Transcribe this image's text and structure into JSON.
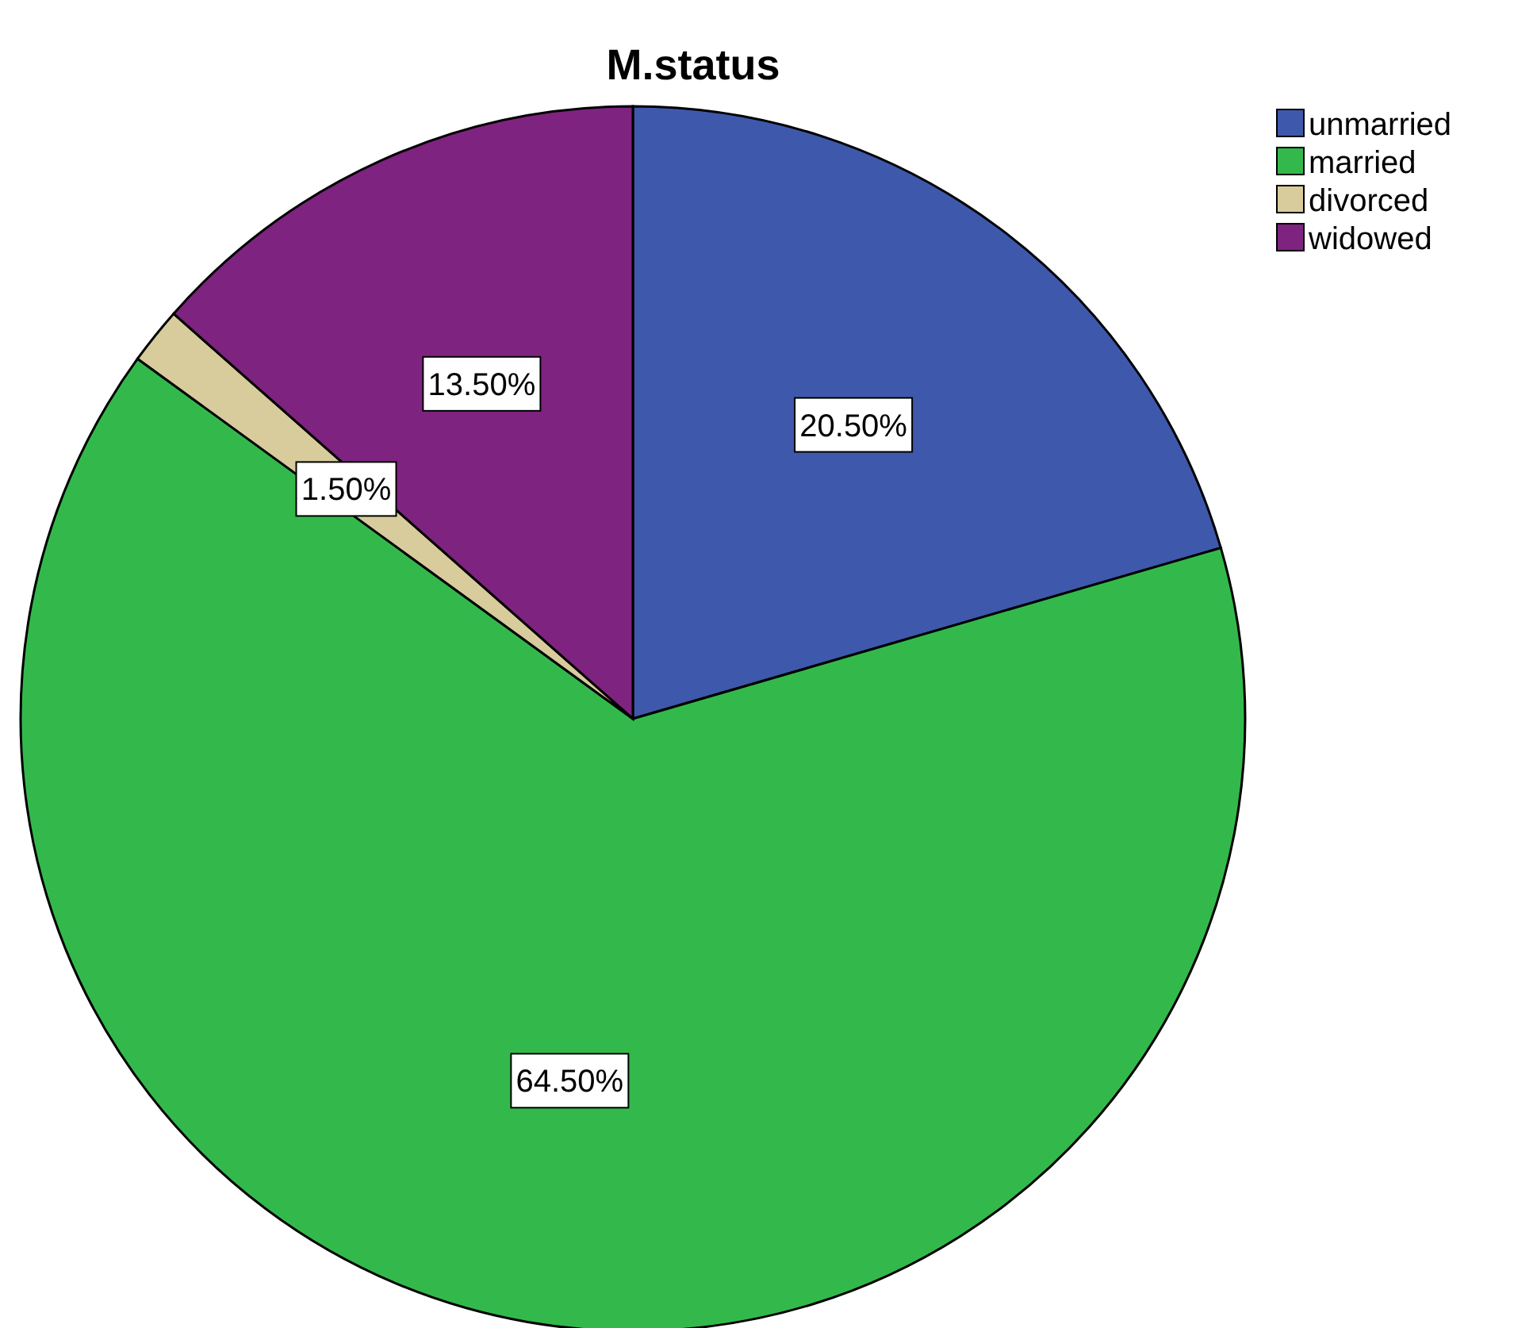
{
  "chart_data": {
    "type": "pie",
    "title": "M.status",
    "categories": [
      "unmarried",
      "married",
      "divorced",
      "widowed"
    ],
    "values": [
      20.5,
      64.5,
      1.5,
      13.5
    ],
    "value_labels": [
      "20.50%",
      "64.50%",
      "1.50%",
      "13.50%"
    ],
    "colors": [
      "#3e58ac",
      "#33b94b",
      "#d8cc9c",
      "#7f2380"
    ],
    "legend": "top right"
  }
}
